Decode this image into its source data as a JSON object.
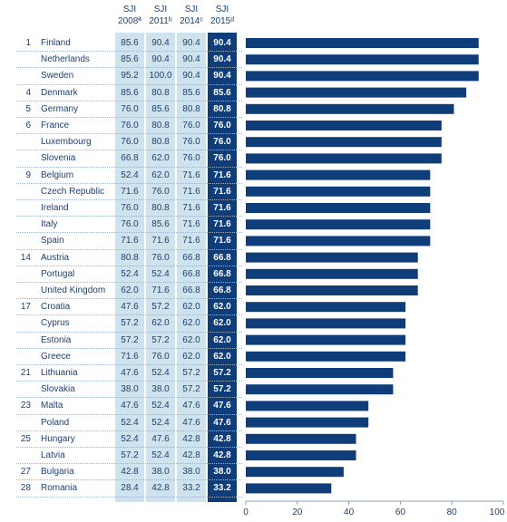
{
  "headers": [
    {
      "line1": "SJI",
      "line2": "2008ª"
    },
    {
      "line1": "SJI",
      "line2": "2011ᵇ"
    },
    {
      "line1": "SJI",
      "line2": "2014ᶜ"
    },
    {
      "line1": "SJI",
      "line2": "2015ᵈ"
    }
  ],
  "rows": [
    {
      "rank": "1",
      "country": "Finland",
      "v2008": "85.6",
      "v2011": "90.4",
      "v2014": "90.4",
      "v2015": "90.4"
    },
    {
      "rank": "",
      "country": "Netherlands",
      "v2008": "85.6",
      "v2011": "90.4",
      "v2014": "90.4",
      "v2015": "90.4"
    },
    {
      "rank": "",
      "country": "Sweden",
      "v2008": "95.2",
      "v2011": "100.0",
      "v2014": "90.4",
      "v2015": "90.4"
    },
    {
      "rank": "4",
      "country": "Denmark",
      "v2008": "85.6",
      "v2011": "80.8",
      "v2014": "85.6",
      "v2015": "85.6"
    },
    {
      "rank": "5",
      "country": "Germany",
      "v2008": "76.0",
      "v2011": "85.6",
      "v2014": "80.8",
      "v2015": "80.8"
    },
    {
      "rank": "6",
      "country": "France",
      "v2008": "76.0",
      "v2011": "80.8",
      "v2014": "76.0",
      "v2015": "76.0"
    },
    {
      "rank": "",
      "country": "Luxembourg",
      "v2008": "76.0",
      "v2011": "80.8",
      "v2014": "76.0",
      "v2015": "76.0"
    },
    {
      "rank": "",
      "country": "Slovenia",
      "v2008": "66.8",
      "v2011": "62.0",
      "v2014": "76.0",
      "v2015": "76.0"
    },
    {
      "rank": "9",
      "country": "Belgium",
      "v2008": "52.4",
      "v2011": "62.0",
      "v2014": "71.6",
      "v2015": "71.6"
    },
    {
      "rank": "",
      "country": "Czech Republic",
      "v2008": "71.6",
      "v2011": "76.0",
      "v2014": "71.6",
      "v2015": "71.6"
    },
    {
      "rank": "",
      "country": "Ireland",
      "v2008": "76.0",
      "v2011": "80.8",
      "v2014": "71.6",
      "v2015": "71.6"
    },
    {
      "rank": "",
      "country": "Italy",
      "v2008": "76.0",
      "v2011": "85.6",
      "v2014": "71.6",
      "v2015": "71.6"
    },
    {
      "rank": "",
      "country": "Spain",
      "v2008": "71.6",
      "v2011": "71.6",
      "v2014": "71.6",
      "v2015": "71.6"
    },
    {
      "rank": "14",
      "country": "Austria",
      "v2008": "80.8",
      "v2011": "76.0",
      "v2014": "66.8",
      "v2015": "66.8"
    },
    {
      "rank": "",
      "country": "Portugal",
      "v2008": "52.4",
      "v2011": "52.4",
      "v2014": "66.8",
      "v2015": "66.8"
    },
    {
      "rank": "",
      "country": "United Kingdom",
      "v2008": "62.0",
      "v2011": "71.6",
      "v2014": "66.8",
      "v2015": "66.8"
    },
    {
      "rank": "17",
      "country": "Croatia",
      "v2008": "47.6",
      "v2011": "57.2",
      "v2014": "62.0",
      "v2015": "62.0"
    },
    {
      "rank": "",
      "country": "Cyprus",
      "v2008": "57.2",
      "v2011": "62.0",
      "v2014": "62.0",
      "v2015": "62.0"
    },
    {
      "rank": "",
      "country": "Estonia",
      "v2008": "57.2",
      "v2011": "57.2",
      "v2014": "62.0",
      "v2015": "62.0"
    },
    {
      "rank": "",
      "country": "Greece",
      "v2008": "71.6",
      "v2011": "76.0",
      "v2014": "62.0",
      "v2015": "62.0"
    },
    {
      "rank": "21",
      "country": "Lithuania",
      "v2008": "47.6",
      "v2011": "52.4",
      "v2014": "57.2",
      "v2015": "57.2"
    },
    {
      "rank": "",
      "country": "Slovakia",
      "v2008": "38.0",
      "v2011": "38.0",
      "v2014": "57.2",
      "v2015": "57.2"
    },
    {
      "rank": "23",
      "country": "Malta",
      "v2008": "47.6",
      "v2011": "52.4",
      "v2014": "47.6",
      "v2015": "47.6"
    },
    {
      "rank": "",
      "country": "Poland",
      "v2008": "52.4",
      "v2011": "52.4",
      "v2014": "47.6",
      "v2015": "47.6"
    },
    {
      "rank": "25",
      "country": "Hungary",
      "v2008": "52.4",
      "v2011": "47.6",
      "v2014": "42.8",
      "v2015": "42.8"
    },
    {
      "rank": "",
      "country": "Latvia",
      "v2008": "57.2",
      "v2011": "52.4",
      "v2014": "42.8",
      "v2015": "42.8"
    },
    {
      "rank": "27",
      "country": "Bulgaria",
      "v2008": "42.8",
      "v2011": "38.0",
      "v2014": "38.0",
      "v2015": "38.0"
    },
    {
      "rank": "28",
      "country": "Romania",
      "v2008": "28.4",
      "v2011": "42.8",
      "v2014": "33.2",
      "v2015": "33.2"
    }
  ],
  "chart_data": {
    "type": "bar",
    "orientation": "horizontal",
    "categories": [
      "Finland",
      "Netherlands",
      "Sweden",
      "Denmark",
      "Germany",
      "France",
      "Luxembourg",
      "Slovenia",
      "Belgium",
      "Czech Republic",
      "Ireland",
      "Italy",
      "Spain",
      "Austria",
      "Portugal",
      "United Kingdom",
      "Croatia",
      "Cyprus",
      "Estonia",
      "Greece",
      "Lithuania",
      "Slovakia",
      "Malta",
      "Poland",
      "Hungary",
      "Latvia",
      "Bulgaria",
      "Romania"
    ],
    "values": [
      90.4,
      90.4,
      90.4,
      85.6,
      80.8,
      76.0,
      76.0,
      76.0,
      71.6,
      71.6,
      71.6,
      71.6,
      71.6,
      66.8,
      66.8,
      66.8,
      62.0,
      62.0,
      62.0,
      62.0,
      57.2,
      57.2,
      47.6,
      47.6,
      42.8,
      42.8,
      38.0,
      33.2
    ],
    "xlim": [
      0,
      100
    ],
    "xticks": [
      "0",
      "20",
      "40",
      "60",
      "80",
      "100"
    ],
    "title": "",
    "xlabel": "",
    "ylabel": "",
    "grid": false
  },
  "colors": {
    "bar": "#0f3d7a",
    "col_light": "#cfe3ee",
    "col_dark": "#0f3d7a",
    "text": "#1f3f6e"
  }
}
